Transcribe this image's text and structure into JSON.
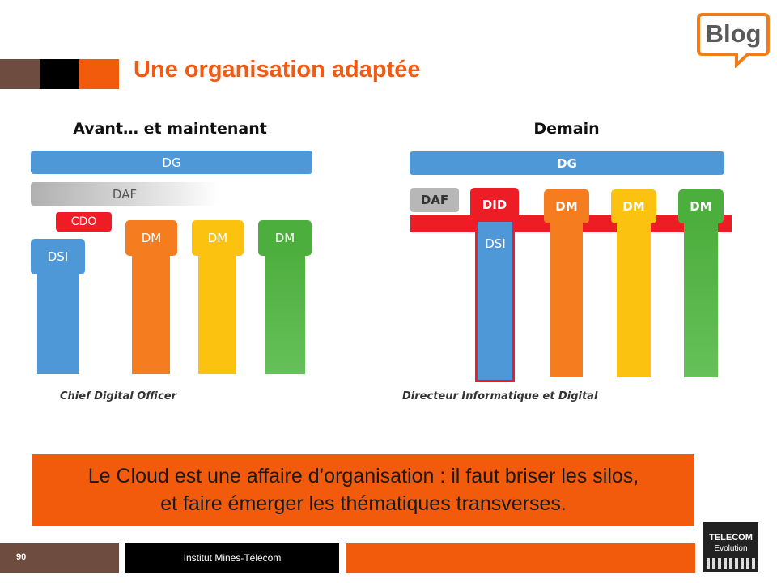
{
  "title": "Une organisation adaptée",
  "blog_badge": "Blog",
  "left": {
    "heading": "Avant… et maintenant",
    "dg": "DG",
    "daf": "DAF",
    "cdo": "CDO",
    "dsi": "DSI",
    "dm": [
      "DM",
      "DM",
      "DM"
    ],
    "caption": "Chief Digital Officer"
  },
  "right": {
    "heading": "Demain",
    "dg": "DG",
    "daf": "DAF",
    "did": "DID",
    "dsi": "DSI",
    "dm": [
      "DM",
      "DM",
      "DM"
    ],
    "caption": "Directeur Informatique et Digital"
  },
  "banner": {
    "line1": "Le Cloud est une affaire d’organisation : il faut briser les silos,",
    "line2": "et faire émerger les thématiques transverses."
  },
  "footer": {
    "page": "90",
    "institute": "Institut Mines-Télécom"
  },
  "logo": {
    "line1": "TELECOM",
    "line2": "Evolution"
  },
  "colors": {
    "accent": "#f05a12",
    "blue": "#4f98d8",
    "orange": "#f57c1f",
    "yellow": "#fcc210",
    "green": "#4cae3c",
    "red": "#ee1c25"
  }
}
